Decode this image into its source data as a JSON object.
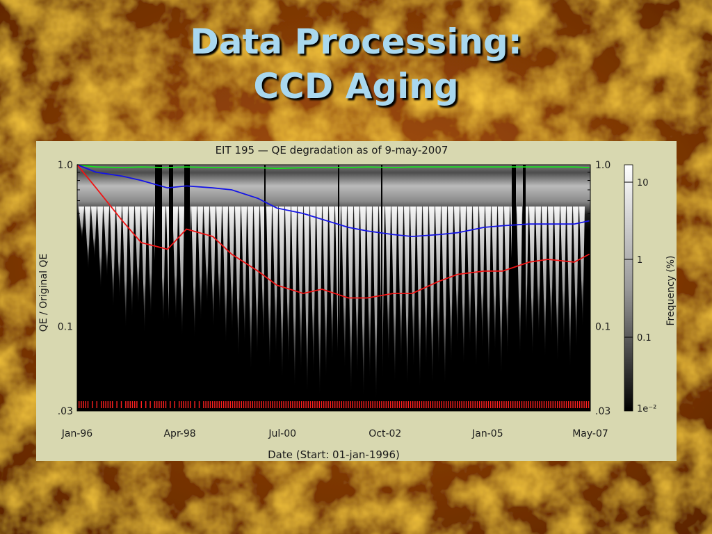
{
  "slide": {
    "title_line1": "Data Processing:",
    "title_line2": "CCD Aging"
  },
  "colors": {
    "title": "#a9d8ef",
    "panel": "#d8d8b0",
    "qe_green": "#19e01f",
    "qe_blue": "#1414e6",
    "qe_red": "#f01414",
    "event_marks": "#ff2020"
  },
  "chart_data": {
    "type": "heatmap",
    "title": "EIT 195 — QE degradation as of 9-may-2007",
    "xlabel": "Date (Start: 01-jan-1996)",
    "ylabel": "QE / Original QE",
    "colorbar_label": "Frequency (%)",
    "y_scale": "log",
    "ylim": [
      0.03,
      1.0
    ],
    "xlim": [
      "1996-01-01",
      "2007-05-09"
    ],
    "x_ticks": [
      "Jan-96",
      "Apr-98",
      "Jul-00",
      "Oct-02",
      "Jan-05",
      "May-07"
    ],
    "y_ticks_left": [
      "1.0",
      "0.1",
      ".03"
    ],
    "y_ticks_right": [
      "1.0",
      "0.1",
      ".03"
    ],
    "colorbar_ticks": [
      "10",
      "1",
      "0.1",
      "1e⁻²"
    ],
    "grid": false,
    "series": [
      {
        "color": "green",
        "x": [
          "1996-01",
          "1996-06",
          "1997-01",
          "1997-06",
          "1998-01",
          "1998-06",
          "1999-01",
          "1999-06",
          "2000-01",
          "2000-06",
          "2001-01",
          "2001-06",
          "2002-01",
          "2002-06",
          "2003-01",
          "2003-06",
          "2004-01",
          "2004-06",
          "2005-01",
          "2005-06",
          "2006-01",
          "2006-06",
          "2007-01",
          "2007-05"
        ],
        "values": [
          1.0,
          0.97,
          0.96,
          0.97,
          0.96,
          0.97,
          0.96,
          0.96,
          0.96,
          0.95,
          0.96,
          0.96,
          0.96,
          0.97,
          0.96,
          0.97,
          0.97,
          0.97,
          0.97,
          0.97,
          0.97,
          0.97,
          0.97,
          0.96
        ]
      },
      {
        "color": "blue",
        "x": [
          "1996-01",
          "1996-06",
          "1997-01",
          "1997-06",
          "1998-01",
          "1998-06",
          "1999-01",
          "1999-06",
          "2000-01",
          "2000-06",
          "2001-01",
          "2001-06",
          "2002-01",
          "2002-06",
          "2003-01",
          "2003-06",
          "2004-01",
          "2004-06",
          "2005-01",
          "2005-06",
          "2006-01",
          "2006-06",
          "2007-01",
          "2007-05"
        ],
        "values": [
          1.0,
          0.9,
          0.85,
          0.8,
          0.72,
          0.74,
          0.72,
          0.7,
          0.62,
          0.54,
          0.5,
          0.46,
          0.41,
          0.39,
          0.37,
          0.36,
          0.37,
          0.38,
          0.41,
          0.42,
          0.43,
          0.43,
          0.43,
          0.45
        ]
      },
      {
        "color": "red",
        "x": [
          "1996-01",
          "1996-06",
          "1997-01",
          "1997-06",
          "1998-01",
          "1998-06",
          "1999-01",
          "1999-06",
          "2000-01",
          "2000-06",
          "2001-01",
          "2001-06",
          "2002-01",
          "2002-06",
          "2003-01",
          "2003-06",
          "2004-01",
          "2004-06",
          "2005-01",
          "2005-06",
          "2006-01",
          "2006-06",
          "2007-01",
          "2007-05"
        ],
        "values": [
          1.0,
          0.72,
          0.45,
          0.33,
          0.3,
          0.4,
          0.36,
          0.28,
          0.22,
          0.18,
          0.16,
          0.17,
          0.15,
          0.15,
          0.16,
          0.16,
          0.19,
          0.21,
          0.22,
          0.22,
          0.25,
          0.26,
          0.25,
          0.28
        ]
      }
    ]
  }
}
